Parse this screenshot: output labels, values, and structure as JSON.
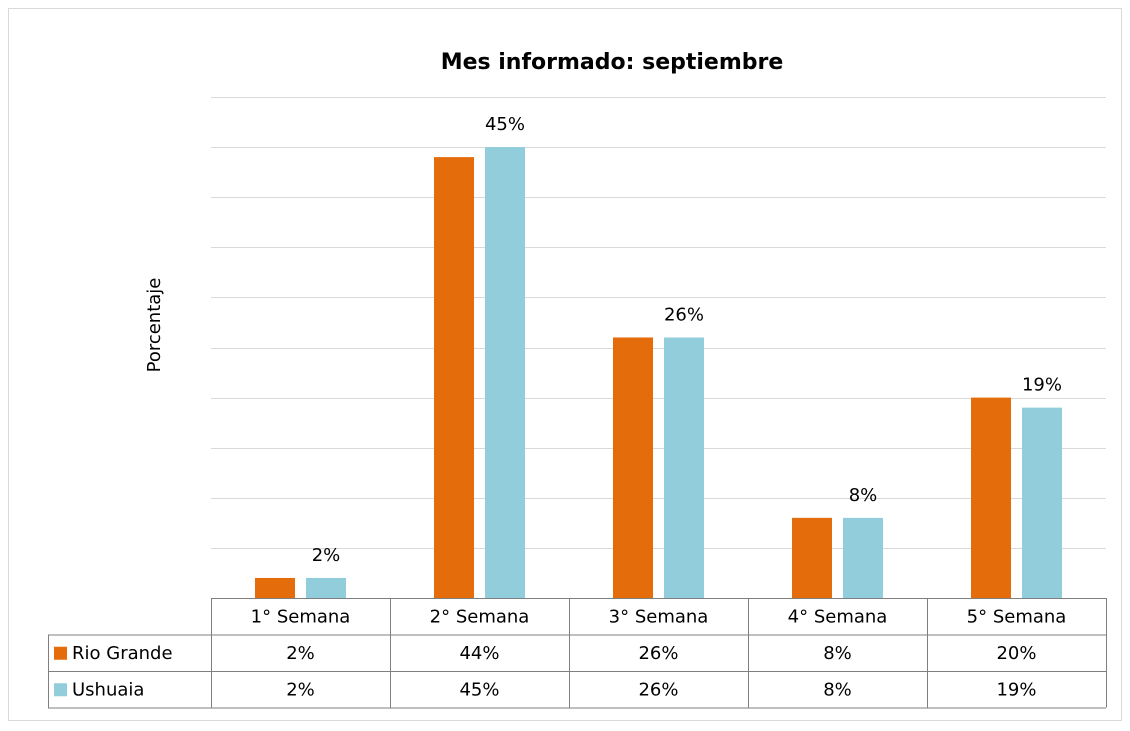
{
  "chart_data": {
    "type": "bar",
    "title": "Mes informado: septiembre",
    "y_label": "Porcentaje",
    "categories": [
      "1° Semana",
      "2° Semana",
      "3° Semana",
      "4° Semana",
      "5° Semana"
    ],
    "series": [
      {
        "name": "Rio Grande",
        "color": "#e46c0a",
        "values": [
          2,
          44,
          26,
          8,
          20
        ],
        "value_labels": [
          "2%",
          "44%",
          "26%",
          "8%",
          "20%"
        ]
      },
      {
        "name": "Ushuaia",
        "color": "#92cddc",
        "values": [
          2,
          45,
          26,
          8,
          19
        ],
        "value_labels": [
          "2%",
          "45%",
          "26%",
          "8%",
          "19%"
        ]
      }
    ],
    "ylim": [
      0,
      50
    ],
    "yticks": [
      0,
      5,
      10,
      15,
      20,
      25,
      30,
      35,
      40,
      45,
      50
    ],
    "grid": true
  }
}
